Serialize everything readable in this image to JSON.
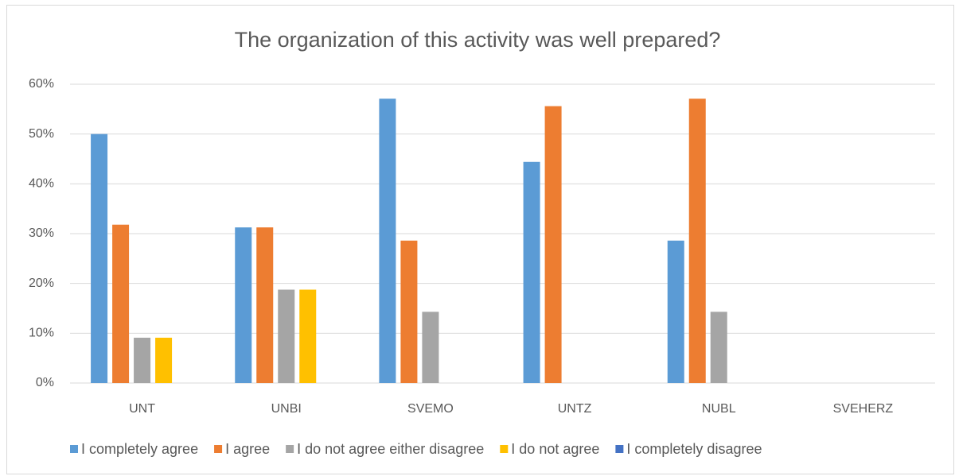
{
  "chart_data": {
    "type": "bar",
    "title": "The organization of this activity was well prepared?",
    "categories": [
      "UNT",
      "UNBI",
      "SVEMO",
      "UNTZ",
      "NUBL",
      "SVEHERZ"
    ],
    "series": [
      {
        "name": "I completely agree",
        "color": "#5b9bd5",
        "values": [
          50,
          31.25,
          57.1,
          44.4,
          28.6,
          0
        ]
      },
      {
        "name": "I agree",
        "color": "#ed7d31",
        "values": [
          31.8,
          31.25,
          28.6,
          55.6,
          57.1,
          0
        ]
      },
      {
        "name": "I do not agree either disagree",
        "color": "#a5a5a5",
        "values": [
          9.1,
          18.75,
          14.3,
          0,
          14.3,
          0
        ]
      },
      {
        "name": "I do not agree",
        "color": "#ffc000",
        "values": [
          9.1,
          18.75,
          0,
          0,
          0,
          0
        ]
      },
      {
        "name": "I completely disagree",
        "color": "#4472c4",
        "values": [
          0,
          0,
          0,
          0,
          0,
          0
        ]
      }
    ],
    "ylim": [
      0,
      60
    ],
    "yticks": [
      {
        "value": 0,
        "label": "0%"
      },
      {
        "value": 10,
        "label": "10%"
      },
      {
        "value": 20,
        "label": "20%"
      },
      {
        "value": 30,
        "label": "30%"
      },
      {
        "value": 40,
        "label": "40%"
      },
      {
        "value": 50,
        "label": "50%"
      },
      {
        "value": 60,
        "label": "60%"
      }
    ],
    "grid": true,
    "legend": "bottom"
  }
}
